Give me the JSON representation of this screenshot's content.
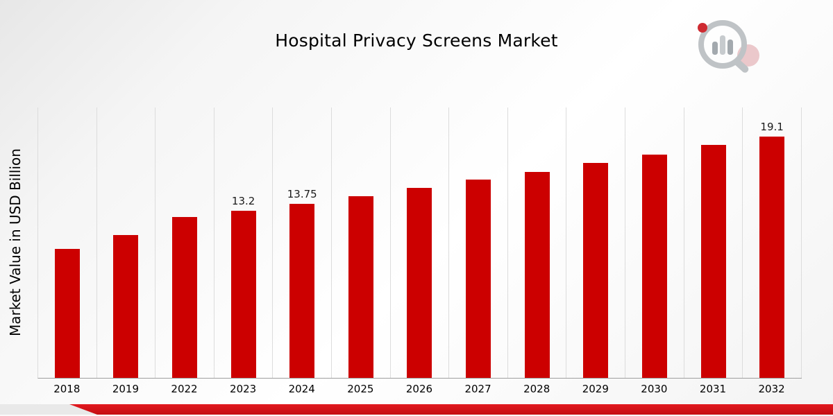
{
  "title": "Hospital Privacy Screens Market",
  "ylabel": "Market Value in USD Billion",
  "brand": {
    "logo_name": "market-research-magnifier-bar-logo"
  },
  "colors": {
    "bar": "#cc0000",
    "ribbon_top": "#e2191f",
    "ribbon_bottom": "#c40d12",
    "gridline": "#dcdcdc"
  },
  "chart_data": {
    "type": "bar",
    "title": "Hospital Privacy Screens Market",
    "xlabel": "",
    "ylabel": "Market Value in USD Billion",
    "categories": [
      "2018",
      "2019",
      "2022",
      "2023",
      "2024",
      "2025",
      "2026",
      "2027",
      "2028",
      "2029",
      "2030",
      "2031",
      "2032"
    ],
    "values": [
      10.2,
      11.3,
      12.75,
      13.2,
      13.75,
      14.4,
      15.05,
      15.7,
      16.3,
      17.0,
      17.65,
      18.45,
      19.1
    ],
    "point_labels": [
      "",
      "",
      "",
      "13.2",
      "13.75",
      "",
      "",
      "",
      "",
      "",
      "",
      "",
      "19.1"
    ],
    "ylim": [
      0,
      21.4
    ],
    "bar_color": "#cc0000",
    "grid": "vertical",
    "legend": "none"
  }
}
